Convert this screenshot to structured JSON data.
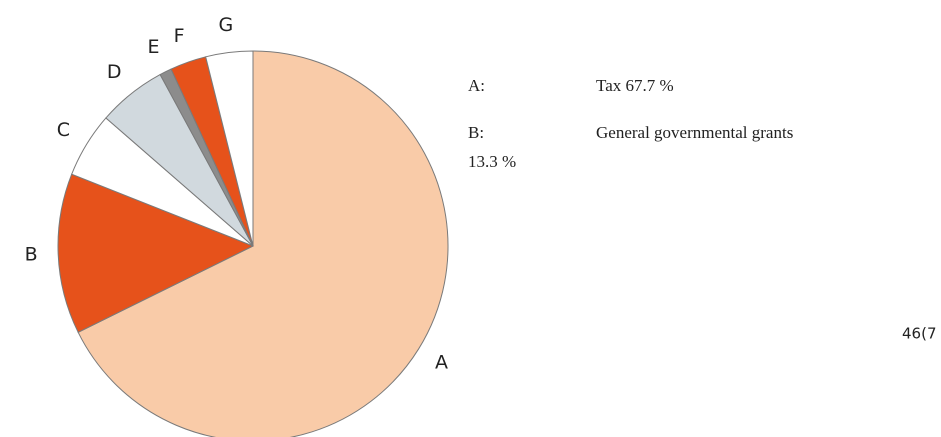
{
  "chart_data": {
    "type": "pie",
    "categories": [
      "A",
      "B",
      "C",
      "D",
      "E",
      "F",
      "G"
    ],
    "values": [
      67.7,
      13.3,
      5.4,
      5.7,
      1.0,
      3.0,
      3.9
    ],
    "colors": [
      "#f9cba8",
      "#e6521b",
      "#ffffff",
      "#d1d9de",
      "#8c8c8c",
      "#e6521b",
      "#ffffff"
    ],
    "start_angle": 0,
    "direction": "clockwise",
    "legend": [
      {
        "key": "A:",
        "text": "Tax 67.7 %"
      },
      {
        "key": "B:",
        "text": "General governmental grants",
        "continuation": "13.3 %"
      }
    ]
  },
  "page_number": "46(7"
}
